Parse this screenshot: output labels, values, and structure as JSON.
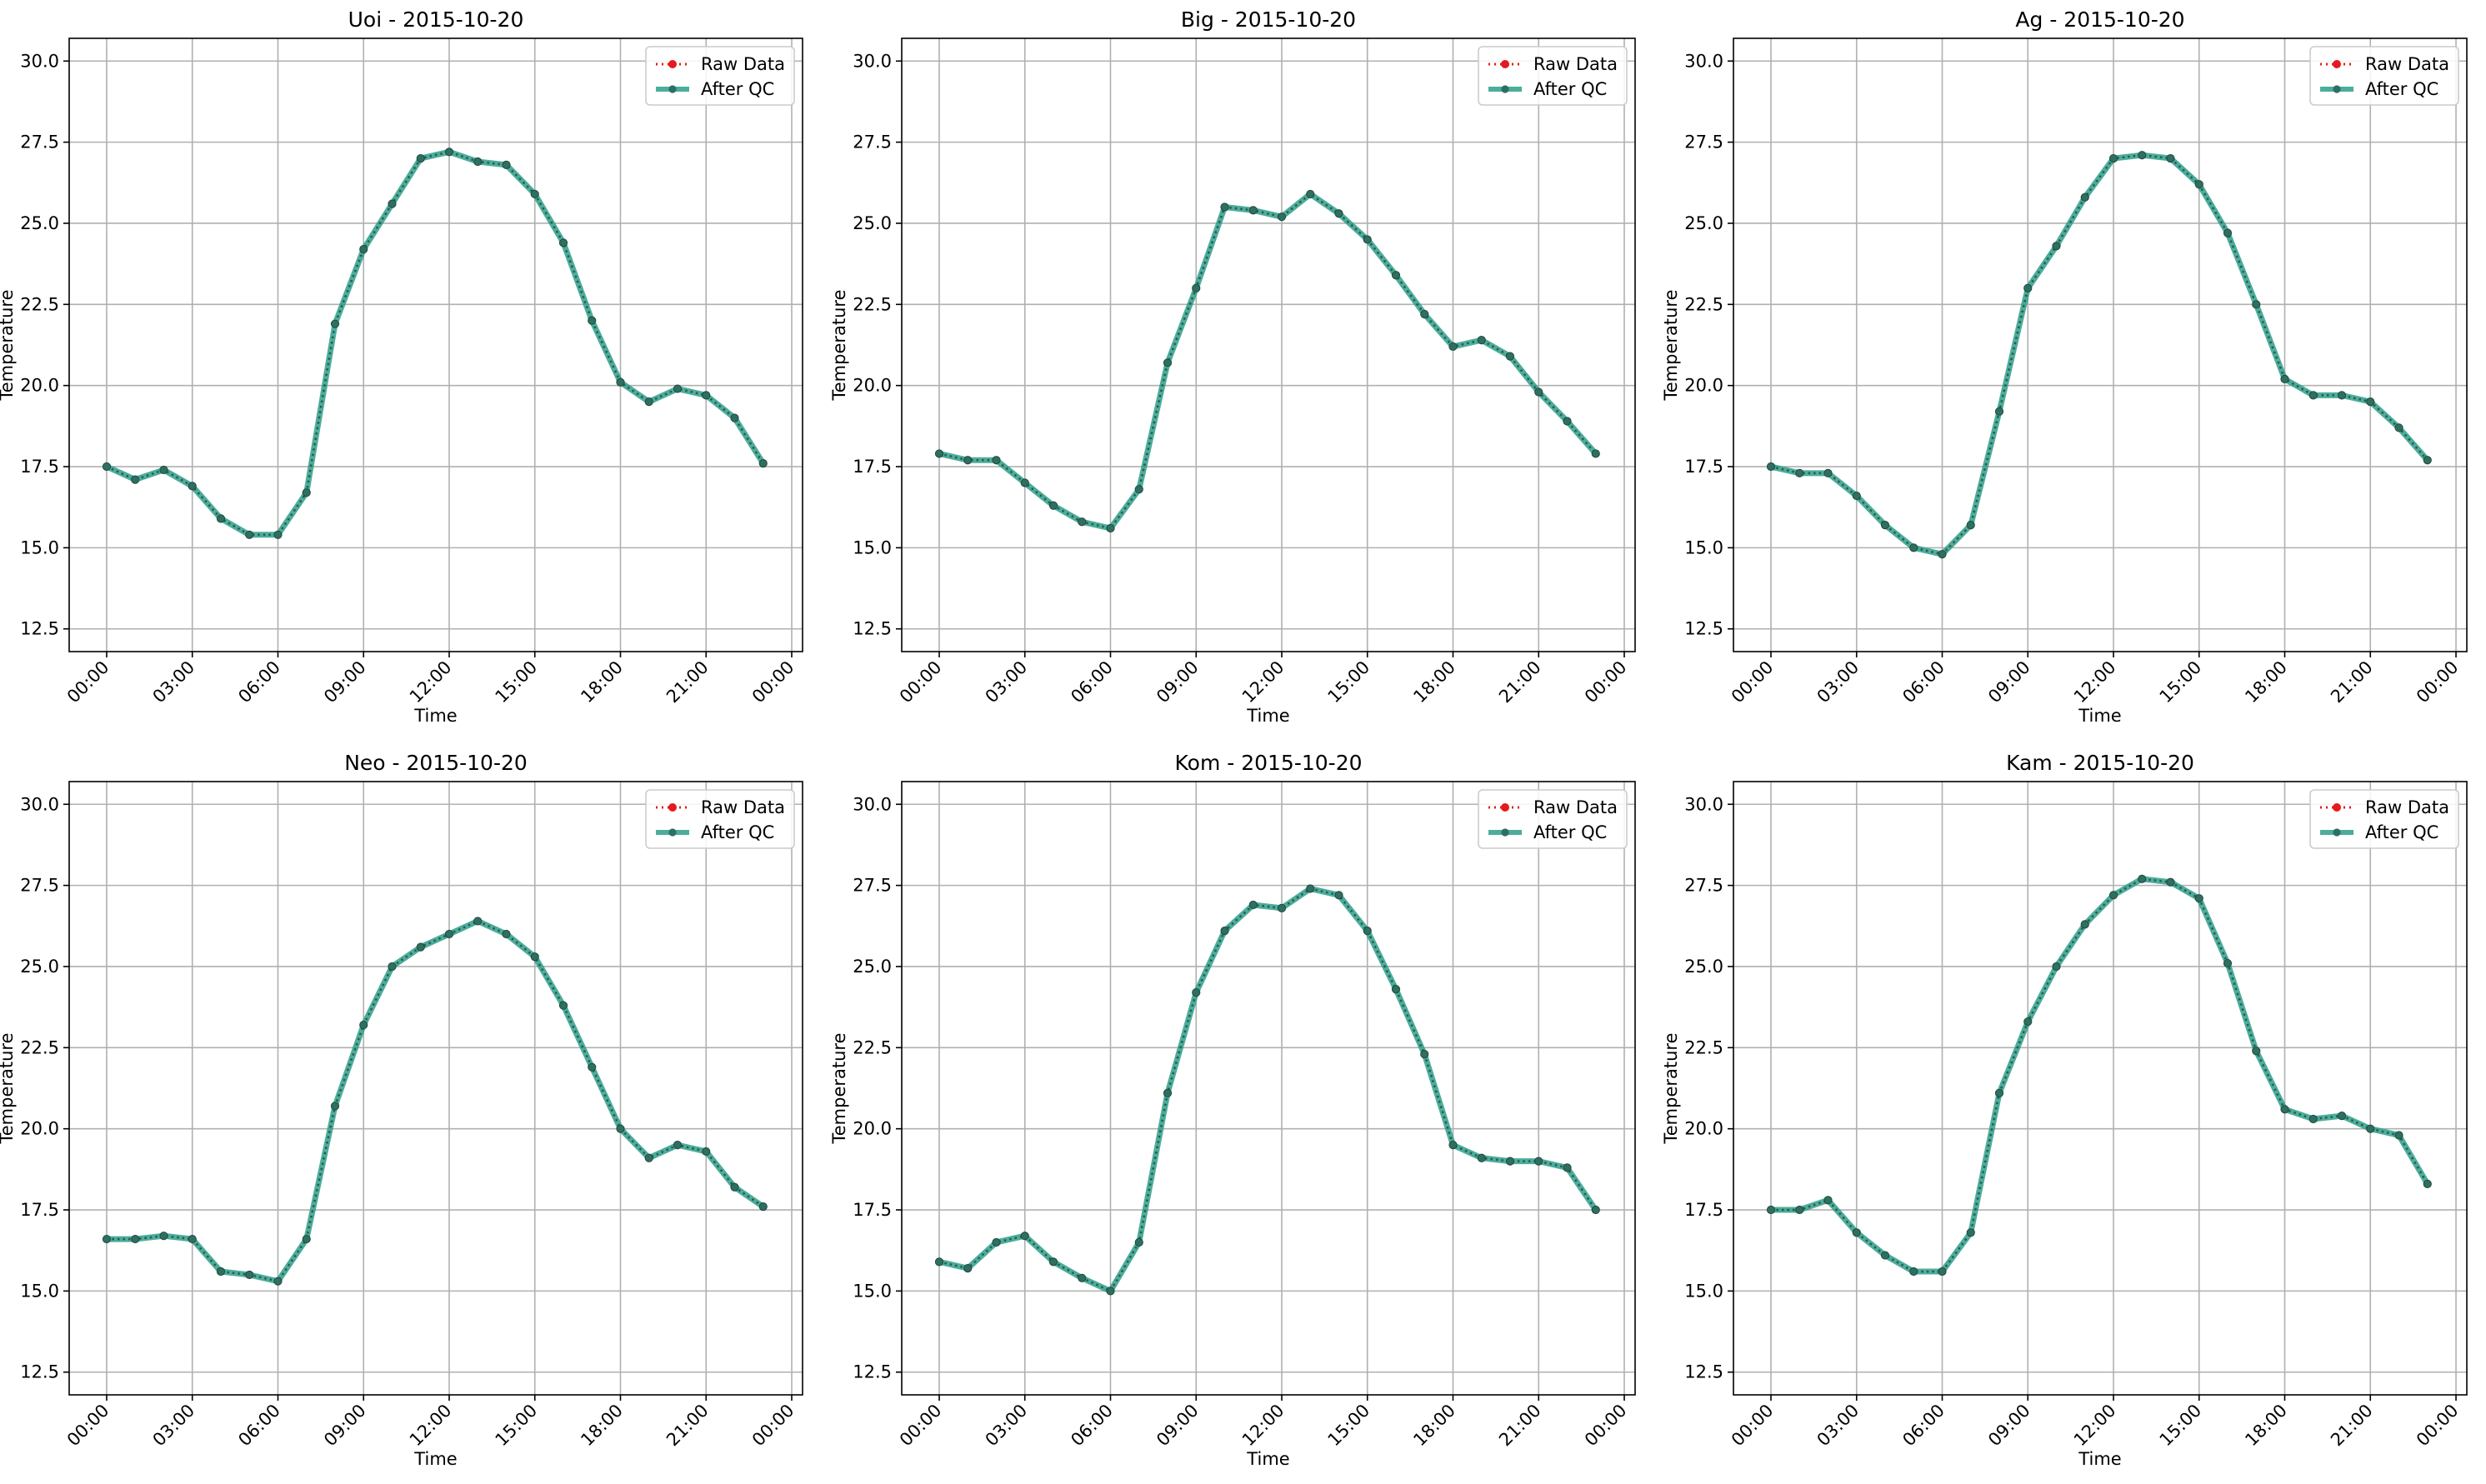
{
  "chart_data": [
    {
      "type": "line",
      "title": "Uoi - 2015-10-20",
      "xlabel": "Time",
      "ylabel": "Temperature",
      "x_hours": [
        0,
        1,
        2,
        3,
        4,
        5,
        6,
        7,
        8,
        9,
        10,
        11,
        12,
        13,
        14,
        15,
        16,
        17,
        18,
        19,
        20,
        21,
        22,
        23
      ],
      "xtick_labels": [
        "00:00",
        "03:00",
        "06:00",
        "09:00",
        "12:00",
        "15:00",
        "18:00",
        "21:00",
        "00:00"
      ],
      "yticks": [
        12.5,
        15.0,
        17.5,
        20.0,
        22.5,
        25.0,
        27.5,
        30.0
      ],
      "ylim": [
        11.8,
        30.7
      ],
      "grid": true,
      "legend_loc": "upper right",
      "series": [
        {
          "name": "Raw Data",
          "color": "#e41a1c",
          "style": "dotted-marker",
          "values": [
            17.5,
            17.1,
            17.4,
            16.9,
            15.9,
            15.4,
            15.4,
            16.7,
            21.9,
            24.2,
            25.6,
            27.0,
            27.2,
            26.9,
            26.8,
            25.9,
            24.4,
            22.0,
            20.1,
            19.5,
            19.9,
            19.7,
            19.0,
            17.6
          ]
        },
        {
          "name": "After QC",
          "color": "#2ca089",
          "style": "solid-marker",
          "values": [
            17.5,
            17.1,
            17.4,
            16.9,
            15.9,
            15.4,
            15.4,
            16.7,
            21.9,
            24.2,
            25.6,
            27.0,
            27.2,
            26.9,
            26.8,
            25.9,
            24.4,
            22.0,
            20.1,
            19.5,
            19.9,
            19.7,
            19.0,
            17.6
          ]
        }
      ]
    },
    {
      "type": "line",
      "title": "Big - 2015-10-20",
      "xlabel": "Time",
      "ylabel": "Temperature",
      "x_hours": [
        0,
        1,
        2,
        3,
        4,
        5,
        6,
        7,
        8,
        9,
        10,
        11,
        12,
        13,
        14,
        15,
        16,
        17,
        18,
        19,
        20,
        21,
        22,
        23
      ],
      "xtick_labels": [
        "00:00",
        "03:00",
        "06:00",
        "09:00",
        "12:00",
        "15:00",
        "18:00",
        "21:00",
        "00:00"
      ],
      "yticks": [
        12.5,
        15.0,
        17.5,
        20.0,
        22.5,
        25.0,
        27.5,
        30.0
      ],
      "ylim": [
        11.8,
        30.7
      ],
      "grid": true,
      "legend_loc": "upper right",
      "series": [
        {
          "name": "Raw Data",
          "color": "#e41a1c",
          "style": "dotted-marker",
          "values": [
            17.9,
            17.7,
            17.7,
            17.0,
            16.3,
            15.8,
            15.6,
            16.8,
            20.7,
            23.0,
            25.5,
            25.4,
            25.2,
            25.9,
            25.3,
            24.5,
            23.4,
            22.2,
            21.2,
            21.4,
            20.9,
            19.8,
            18.9,
            17.9
          ]
        },
        {
          "name": "After QC",
          "color": "#2ca089",
          "style": "solid-marker",
          "values": [
            17.9,
            17.7,
            17.7,
            17.0,
            16.3,
            15.8,
            15.6,
            16.8,
            20.7,
            23.0,
            25.5,
            25.4,
            25.2,
            25.9,
            25.3,
            24.5,
            23.4,
            22.2,
            21.2,
            21.4,
            20.9,
            19.8,
            18.9,
            17.9
          ]
        }
      ]
    },
    {
      "type": "line",
      "title": "Ag - 2015-10-20",
      "xlabel": "Time",
      "ylabel": "Temperature",
      "x_hours": [
        0,
        1,
        2,
        3,
        4,
        5,
        6,
        7,
        8,
        9,
        10,
        11,
        12,
        13,
        14,
        15,
        16,
        17,
        18,
        19,
        20,
        21,
        22,
        23
      ],
      "xtick_labels": [
        "00:00",
        "03:00",
        "06:00",
        "09:00",
        "12:00",
        "15:00",
        "18:00",
        "21:00",
        "00:00"
      ],
      "yticks": [
        12.5,
        15.0,
        17.5,
        20.0,
        22.5,
        25.0,
        27.5,
        30.0
      ],
      "ylim": [
        11.8,
        30.7
      ],
      "grid": true,
      "legend_loc": "upper right",
      "series": [
        {
          "name": "Raw Data",
          "color": "#e41a1c",
          "style": "dotted-marker",
          "values": [
            17.5,
            17.3,
            17.3,
            16.6,
            15.7,
            15.0,
            14.8,
            15.7,
            19.2,
            23.0,
            24.3,
            25.8,
            27.0,
            27.1,
            27.0,
            26.2,
            24.7,
            22.5,
            20.2,
            19.7,
            19.7,
            19.5,
            18.7,
            17.7
          ]
        },
        {
          "name": "After QC",
          "color": "#2ca089",
          "style": "solid-marker",
          "values": [
            17.5,
            17.3,
            17.3,
            16.6,
            15.7,
            15.0,
            14.8,
            15.7,
            19.2,
            23.0,
            24.3,
            25.8,
            27.0,
            27.1,
            27.0,
            26.2,
            24.7,
            22.5,
            20.2,
            19.7,
            19.7,
            19.5,
            18.7,
            17.7
          ]
        }
      ]
    },
    {
      "type": "line",
      "title": "Neo - 2015-10-20",
      "xlabel": "Time",
      "ylabel": "Temperature",
      "x_hours": [
        0,
        1,
        2,
        3,
        4,
        5,
        6,
        7,
        8,
        9,
        10,
        11,
        12,
        13,
        14,
        15,
        16,
        17,
        18,
        19,
        20,
        21,
        22,
        23
      ],
      "xtick_labels": [
        "00:00",
        "03:00",
        "06:00",
        "09:00",
        "12:00",
        "15:00",
        "18:00",
        "21:00",
        "00:00"
      ],
      "yticks": [
        12.5,
        15.0,
        17.5,
        20.0,
        22.5,
        25.0,
        27.5,
        30.0
      ],
      "ylim": [
        11.8,
        30.7
      ],
      "grid": true,
      "legend_loc": "upper right",
      "series": [
        {
          "name": "Raw Data",
          "color": "#e41a1c",
          "style": "dotted-marker",
          "values": [
            16.6,
            16.6,
            16.7,
            16.6,
            15.6,
            15.5,
            15.3,
            16.6,
            20.7,
            23.2,
            25.0,
            25.6,
            26.0,
            26.4,
            26.0,
            25.3,
            23.8,
            21.9,
            20.0,
            19.1,
            19.5,
            19.3,
            18.2,
            17.6
          ]
        },
        {
          "name": "After QC",
          "color": "#2ca089",
          "style": "solid-marker",
          "values": [
            16.6,
            16.6,
            16.7,
            16.6,
            15.6,
            15.5,
            15.3,
            16.6,
            20.7,
            23.2,
            25.0,
            25.6,
            26.0,
            26.4,
            26.0,
            25.3,
            23.8,
            21.9,
            20.0,
            19.1,
            19.5,
            19.3,
            18.2,
            17.6
          ]
        }
      ]
    },
    {
      "type": "line",
      "title": "Kom - 2015-10-20",
      "xlabel": "Time",
      "ylabel": "Temperature",
      "x_hours": [
        0,
        1,
        2,
        3,
        4,
        5,
        6,
        7,
        8,
        9,
        10,
        11,
        12,
        13,
        14,
        15,
        16,
        17,
        18,
        19,
        20,
        21,
        22,
        23
      ],
      "xtick_labels": [
        "00:00",
        "03:00",
        "06:00",
        "09:00",
        "12:00",
        "15:00",
        "18:00",
        "21:00",
        "00:00"
      ],
      "yticks": [
        12.5,
        15.0,
        17.5,
        20.0,
        22.5,
        25.0,
        27.5,
        30.0
      ],
      "ylim": [
        11.8,
        30.7
      ],
      "grid": true,
      "legend_loc": "upper right",
      "series": [
        {
          "name": "Raw Data",
          "color": "#e41a1c",
          "style": "dotted-marker",
          "values": [
            15.9,
            15.7,
            16.5,
            16.7,
            15.9,
            15.4,
            15.0,
            16.5,
            21.1,
            24.2,
            26.1,
            26.9,
            26.8,
            27.4,
            27.2,
            26.1,
            24.3,
            22.3,
            19.5,
            19.1,
            19.0,
            19.0,
            18.8,
            17.5
          ]
        },
        {
          "name": "After QC",
          "color": "#2ca089",
          "style": "solid-marker",
          "values": [
            15.9,
            15.7,
            16.5,
            16.7,
            15.9,
            15.4,
            15.0,
            16.5,
            21.1,
            24.2,
            26.1,
            26.9,
            26.8,
            27.4,
            27.2,
            26.1,
            24.3,
            22.3,
            19.5,
            19.1,
            19.0,
            19.0,
            18.8,
            17.5
          ]
        }
      ]
    },
    {
      "type": "line",
      "title": "Kam - 2015-10-20",
      "xlabel": "Time",
      "ylabel": "Temperature",
      "x_hours": [
        0,
        1,
        2,
        3,
        4,
        5,
        6,
        7,
        8,
        9,
        10,
        11,
        12,
        13,
        14,
        15,
        16,
        17,
        18,
        19,
        20,
        21,
        22,
        23
      ],
      "xtick_labels": [
        "00:00",
        "03:00",
        "06:00",
        "09:00",
        "12:00",
        "15:00",
        "18:00",
        "21:00",
        "00:00"
      ],
      "yticks": [
        12.5,
        15.0,
        17.5,
        20.0,
        22.5,
        25.0,
        27.5,
        30.0
      ],
      "ylim": [
        11.8,
        30.7
      ],
      "grid": true,
      "legend_loc": "upper right",
      "series": [
        {
          "name": "Raw Data",
          "color": "#e41a1c",
          "style": "dotted-marker",
          "values": [
            17.5,
            17.5,
            17.8,
            16.8,
            16.1,
            15.6,
            15.6,
            16.8,
            21.1,
            23.3,
            25.0,
            26.3,
            27.2,
            27.7,
            27.6,
            27.1,
            25.1,
            22.4,
            20.6,
            20.3,
            20.4,
            20.0,
            19.8,
            18.3
          ]
        },
        {
          "name": "After QC",
          "color": "#2ca089",
          "style": "solid-marker",
          "values": [
            17.5,
            17.5,
            17.8,
            16.8,
            16.1,
            15.6,
            15.6,
            16.8,
            21.1,
            23.3,
            25.0,
            26.3,
            27.2,
            27.7,
            27.6,
            27.1,
            25.1,
            22.4,
            20.6,
            20.3,
            20.4,
            20.0,
            19.8,
            18.3
          ]
        }
      ]
    }
  ]
}
